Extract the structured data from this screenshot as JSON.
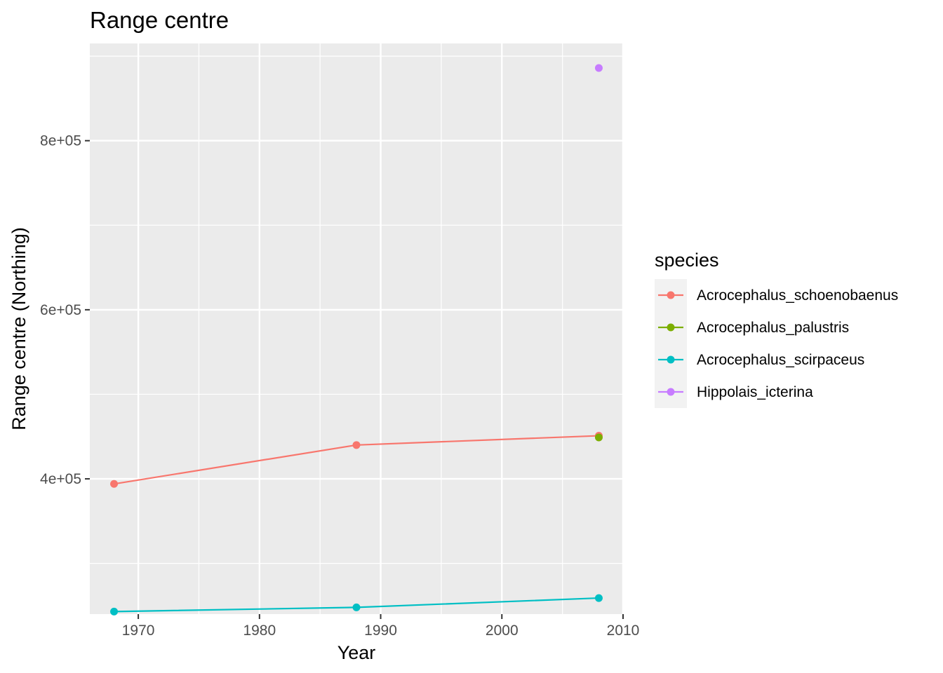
{
  "chart_data": {
    "type": "line",
    "title": "Range centre",
    "xlabel": "Year",
    "ylabel": "Range centre (Northing)",
    "xlim": [
      1966,
      2010
    ],
    "ylim": [
      240000,
      915000
    ],
    "x_ticks": [
      1970,
      1980,
      1990,
      2000,
      2010
    ],
    "x_tick_labels": [
      "1970",
      "1980",
      "1990",
      "2000",
      "2010"
    ],
    "y_ticks": [
      400000,
      600000,
      800000
    ],
    "y_tick_labels": [
      "4e+05",
      "6e+05",
      "8e+05"
    ],
    "grid": true,
    "legend": {
      "title": "species",
      "position": "right"
    },
    "series": [
      {
        "name": "Acrocephalus_schoenobaenus",
        "color": "#F8766D",
        "x": [
          1968,
          1988,
          2008
        ],
        "y": [
          394000,
          440000,
          451000
        ]
      },
      {
        "name": "Acrocephalus_palustris",
        "color": "#7CAE00",
        "x": [
          2008
        ],
        "y": [
          449000
        ]
      },
      {
        "name": "Acrocephalus_scirpaceus",
        "color": "#00BFC4",
        "x": [
          1968,
          1988,
          2008
        ],
        "y": [
          243000,
          248000,
          259000
        ]
      },
      {
        "name": "Hippolais_icterina",
        "color": "#C77CFF",
        "x": [
          2008
        ],
        "y": [
          886000
        ]
      }
    ]
  }
}
